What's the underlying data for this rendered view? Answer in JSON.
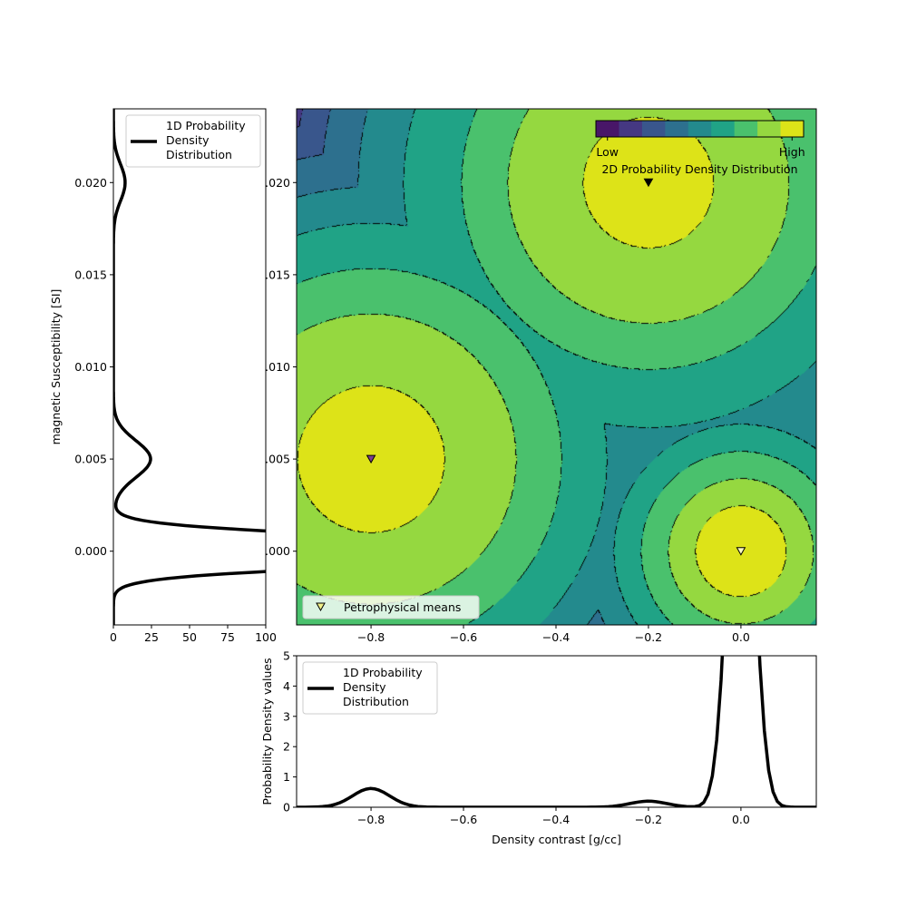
{
  "chart_data": [
    {
      "id": "main",
      "type": "heatmap",
      "subtype": "filled-contour",
      "xlim": [
        -0.961,
        0.163
      ],
      "ylim": [
        -0.004,
        0.024
      ],
      "xticks": [
        -0.8,
        -0.6,
        -0.4,
        -0.2,
        0.0
      ],
      "xtick_labels": [
        "−0.8",
        "−0.6",
        "−0.4",
        "−0.2",
        "0.0"
      ],
      "yticks": [
        0.0,
        0.005,
        0.01,
        0.015,
        0.02
      ],
      "ytick_labels": [
        "0.000",
        "0.005",
        "0.010",
        "0.015",
        "0.020"
      ],
      "colormap": "viridis",
      "levels": 9,
      "level_colors": [
        "#481668",
        "#453882",
        "#39568c",
        "#2d708e",
        "#238a8d",
        "#20a386",
        "#4ac16d",
        "#95d840",
        "#dde318"
      ],
      "contour_line_style": "dash-dot",
      "colorbar": {
        "label": "2D Probability Density Distribution",
        "low_label": "Low",
        "high_label": "High",
        "placement": "top-right"
      },
      "means": [
        {
          "x": -0.8,
          "y": 0.005,
          "marker_color": "#7b3f8f"
        },
        {
          "x": -0.2,
          "y": 0.02,
          "marker_color": "#000000"
        },
        {
          "x": 0.0,
          "y": 0.0,
          "marker_color": "#fbfbc4"
        }
      ],
      "legend": {
        "label": "Petrophysical means",
        "placement": "bottom-left",
        "marker_color": "#f0f08a"
      }
    },
    {
      "id": "left",
      "type": "line",
      "ylabel": "magnetic Susceptibility [SI]",
      "xlim": [
        0,
        100
      ],
      "ylim": [
        -0.004,
        0.024
      ],
      "xticks": [
        0,
        25,
        50,
        75,
        100
      ],
      "xtick_labels": [
        "0",
        "25",
        "50",
        "75",
        "100"
      ],
      "yticks": [
        0.0,
        0.005,
        0.01,
        0.015,
        0.02
      ],
      "ytick_labels": [
        "0.000",
        "0.005",
        "0.010",
        "0.015",
        "0.020"
      ],
      "peaks": [
        {
          "center": 0.0,
          "height": 359,
          "width": 0.00069
        },
        {
          "center": 0.005,
          "height": 24.4,
          "width": 0.001
        },
        {
          "center": 0.02,
          "height": 7.7,
          "width": 0.001
        }
      ],
      "legend": {
        "label_lines": [
          "1D Probability",
          "Density",
          "Distribution"
        ],
        "placement": "top-right"
      }
    },
    {
      "id": "bottom",
      "type": "line",
      "xlabel": "Density contrast [g/cc]",
      "ylabel": "Probability Density values",
      "xlim": [
        -0.961,
        0.163
      ],
      "ylim": [
        0,
        5
      ],
      "xticks": [
        -0.8,
        -0.6,
        -0.4,
        -0.2,
        0.0
      ],
      "xtick_labels": [
        "−0.8",
        "−0.6",
        "−0.4",
        "−0.2",
        "0.0"
      ],
      "yticks": [
        0,
        1,
        2,
        3,
        4,
        5
      ],
      "ytick_labels": [
        "0",
        "1",
        "2",
        "3",
        "4",
        "5"
      ],
      "peaks": [
        {
          "center": -0.8,
          "height": 0.62,
          "width": 0.04
        },
        {
          "center": -0.2,
          "height": 0.2,
          "width": 0.04
        },
        {
          "center": 0.0,
          "height": 15.7,
          "width": 0.0265
        }
      ],
      "legend": {
        "label_lines": [
          "1D Probability",
          "Density",
          "Distribution"
        ],
        "placement": "top-left"
      }
    }
  ]
}
